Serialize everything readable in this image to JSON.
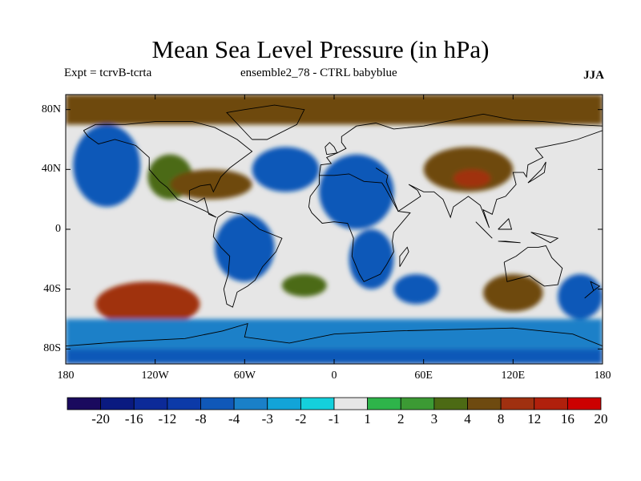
{
  "title": "Mean Sea Level Pressure (in hPa)",
  "subtitle_left": "Expt = tcrvB-tcrta",
  "subtitle_center": "ensemble2_78 - CTRL babyblue",
  "season": "JJA",
  "y_ticks": [
    "80N",
    "40N",
    "0",
    "40S",
    "80S"
  ],
  "x_ticks": [
    "180",
    "120W",
    "60W",
    "0",
    "60E",
    "120E",
    "180"
  ],
  "colorbar": {
    "labels": [
      "-20",
      "-16",
      "-12",
      "-8",
      "-4",
      "-3",
      "-2",
      "-1",
      "1",
      "2",
      "3",
      "4",
      "8",
      "12",
      "16",
      "20"
    ],
    "colors": [
      "#1a0a5e",
      "#0a1a80",
      "#0c2a98",
      "#0c3aa8",
      "#1058b8",
      "#1a80c8",
      "#12a4d8",
      "#14d0dc",
      "#e6e6e6",
      "#2eb44a",
      "#3c9a34",
      "#4c6a14",
      "#6e4a10",
      "#a03010",
      "#b0200c",
      "#cc0000"
    ]
  },
  "chart_data": {
    "type": "map",
    "projection": "equirectangular",
    "xlim": [
      -180,
      180
    ],
    "ylim": [
      -90,
      90
    ],
    "variable": "Mean Sea Level Pressure difference (hPa)",
    "levels": [
      -20,
      -16,
      -12,
      -8,
      -4,
      -3,
      -2,
      -1,
      1,
      2,
      3,
      4,
      8,
      12,
      16,
      20
    ],
    "anomaly_regions": [
      {
        "region": "Arctic / northern high latitudes",
        "lon": [
          -180,
          180
        ],
        "lat": [
          70,
          90
        ],
        "value": 6
      },
      {
        "region": "North Pacific",
        "lon": [
          -175,
          -130
        ],
        "lat": [
          15,
          70
        ],
        "value": -4
      },
      {
        "region": "North Atlantic",
        "lon": [
          -55,
          -10
        ],
        "lat": [
          25,
          55
        ],
        "value": -6
      },
      {
        "region": "North Africa / Mediterranean",
        "lon": [
          -10,
          40
        ],
        "lat": [
          0,
          50
        ],
        "value": -4
      },
      {
        "region": "Central Asia",
        "lon": [
          60,
          120
        ],
        "lat": [
          25,
          55
        ],
        "value": 5
      },
      {
        "region": "Tibetan Plateau core",
        "lon": [
          80,
          105
        ],
        "lat": [
          28,
          40
        ],
        "value": 10
      },
      {
        "region": "Western North America",
        "lon": [
          -125,
          -95
        ],
        "lat": [
          20,
          50
        ],
        "value": 3
      },
      {
        "region": "North America / North Atlantic subtropics",
        "lon": [
          -110,
          -55
        ],
        "lat": [
          20,
          40
        ],
        "value": 4
      },
      {
        "region": "Tropical South America",
        "lon": [
          -80,
          -40
        ],
        "lat": [
          -35,
          10
        ],
        "value": -5
      },
      {
        "region": "South Atlantic",
        "lon": [
          -35,
          -5
        ],
        "lat": [
          -45,
          -30
        ],
        "value": 3
      },
      {
        "region": "Southern Africa",
        "lon": [
          10,
          40
        ],
        "lat": [
          -40,
          0
        ],
        "value": -5
      },
      {
        "region": "Indian Ocean",
        "lon": [
          40,
          70
        ],
        "lat": [
          -50,
          -30
        ],
        "value": -4
      },
      {
        "region": "Southern Indian / Australia",
        "lon": [
          100,
          140
        ],
        "lat": [
          -55,
          -30
        ],
        "value": 6
      },
      {
        "region": "South Pacific",
        "lon": [
          -160,
          -90
        ],
        "lat": [
          -65,
          -35
        ],
        "value": 8
      },
      {
        "region": "Southeast Pacific",
        "lon": [
          150,
          180
        ],
        "lat": [
          -60,
          -30
        ],
        "value": -6
      },
      {
        "region": "Southern Ocean",
        "lon": [
          -180,
          180
        ],
        "lat": [
          -80,
          -60
        ],
        "value": -3
      },
      {
        "region": "Antarctica",
        "lon": [
          -180,
          180
        ],
        "lat": [
          -90,
          -80
        ],
        "value": -6
      }
    ]
  }
}
